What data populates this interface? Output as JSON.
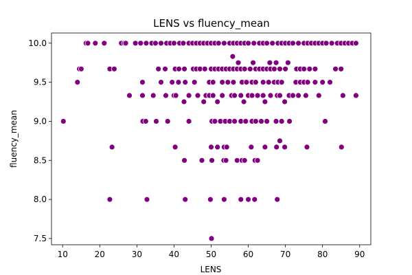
{
  "chart_data": {
    "type": "scatter",
    "title": "LENS vs fluency_mean",
    "xlabel": "LENS",
    "ylabel": "fluency_mean",
    "xlim": [
      7,
      93
    ],
    "ylim": [
      7.42,
      10.13
    ],
    "xticks": [
      10,
      20,
      30,
      40,
      50,
      60,
      70,
      80,
      90
    ],
    "yticks": [
      7.5,
      8.0,
      8.5,
      9.0,
      9.5,
      10.0
    ],
    "ytick_labels": [
      "7.5",
      "8.0",
      "8.5",
      "9.0",
      "9.5",
      "10.0"
    ],
    "grid": false,
    "marker_color": "#800080",
    "points": [
      [
        16.3,
        10.0
      ],
      [
        16.8,
        10.0
      ],
      [
        18.8,
        10.0
      ],
      [
        21.2,
        10.0
      ],
      [
        25.8,
        10.0
      ],
      [
        26.6,
        10.0
      ],
      [
        27.0,
        10.0
      ],
      [
        29.6,
        10.0
      ],
      [
        31.0,
        10.0
      ],
      [
        32.5,
        10.0
      ],
      [
        34.0,
        10.0
      ],
      [
        35.0,
        10.0
      ],
      [
        36.5,
        10.0
      ],
      [
        38.0,
        10.0
      ],
      [
        39.0,
        10.0
      ],
      [
        40.0,
        10.0
      ],
      [
        41.5,
        10.0
      ],
      [
        42.5,
        10.0
      ],
      [
        44.0,
        10.0
      ],
      [
        45.0,
        10.0
      ],
      [
        46.0,
        10.0
      ],
      [
        47.0,
        10.0
      ],
      [
        48.0,
        10.0
      ],
      [
        49.0,
        10.0
      ],
      [
        50.0,
        10.0
      ],
      [
        51.0,
        10.0
      ],
      [
        52.0,
        10.0
      ],
      [
        53.5,
        10.0
      ],
      [
        55.0,
        10.0
      ],
      [
        56.0,
        10.0
      ],
      [
        57.0,
        10.0
      ],
      [
        58.0,
        10.0
      ],
      [
        59.0,
        10.0
      ],
      [
        60.0,
        10.0
      ],
      [
        61.5,
        10.0
      ],
      [
        63.0,
        10.0
      ],
      [
        64.0,
        10.0
      ],
      [
        65.0,
        10.0
      ],
      [
        66.5,
        10.0
      ],
      [
        68.0,
        10.0
      ],
      [
        69.0,
        10.0
      ],
      [
        70.0,
        10.0
      ],
      [
        71.0,
        10.0
      ],
      [
        72.0,
        10.0
      ],
      [
        73.5,
        10.0
      ],
      [
        75.0,
        10.0
      ],
      [
        76.0,
        10.0
      ],
      [
        77.0,
        10.0
      ],
      [
        78.0,
        10.0
      ],
      [
        79.0,
        10.0
      ],
      [
        80.0,
        10.0
      ],
      [
        81.0,
        10.0
      ],
      [
        82.5,
        10.0
      ],
      [
        84.0,
        10.0
      ],
      [
        85.0,
        10.0
      ],
      [
        86.0,
        10.0
      ],
      [
        87.0,
        10.0
      ],
      [
        88.0,
        10.0
      ],
      [
        89.0,
        10.0
      ],
      [
        55.8,
        9.83
      ],
      [
        57.3,
        9.75
      ],
      [
        61.3,
        9.75
      ],
      [
        65.8,
        9.75
      ],
      [
        67.5,
        9.75
      ],
      [
        70.7,
        9.75
      ],
      [
        14.5,
        9.67
      ],
      [
        15.0,
        9.67
      ],
      [
        22.7,
        9.67
      ],
      [
        23.9,
        9.67
      ],
      [
        35.8,
        9.67
      ],
      [
        37.6,
        9.67
      ],
      [
        40.3,
        9.67
      ],
      [
        41.3,
        9.67
      ],
      [
        42.8,
        9.67
      ],
      [
        45.2,
        9.67
      ],
      [
        46.0,
        9.67
      ],
      [
        47.0,
        9.67
      ],
      [
        48.3,
        9.67
      ],
      [
        50.0,
        9.67
      ],
      [
        51.0,
        9.67
      ],
      [
        52.0,
        9.67
      ],
      [
        53.0,
        9.67
      ],
      [
        54.0,
        9.67
      ],
      [
        55.0,
        9.67
      ],
      [
        56.0,
        9.67
      ],
      [
        57.0,
        9.67
      ],
      [
        58.0,
        9.67
      ],
      [
        59.0,
        9.67
      ],
      [
        60.5,
        9.67
      ],
      [
        62.0,
        9.67
      ],
      [
        63.0,
        9.67
      ],
      [
        64.0,
        9.67
      ],
      [
        65.0,
        9.67
      ],
      [
        66.0,
        9.67
      ],
      [
        67.0,
        9.67
      ],
      [
        68.5,
        9.67
      ],
      [
        70.0,
        9.67
      ],
      [
        73.0,
        9.67
      ],
      [
        74.0,
        9.67
      ],
      [
        75.0,
        9.67
      ],
      [
        76.5,
        9.67
      ],
      [
        78.0,
        9.67
      ],
      [
        83.5,
        9.67
      ],
      [
        85.0,
        9.67
      ],
      [
        14.0,
        9.5
      ],
      [
        31.5,
        9.5
      ],
      [
        36.5,
        9.5
      ],
      [
        39.5,
        9.5
      ],
      [
        41.2,
        9.5
      ],
      [
        43.0,
        9.5
      ],
      [
        45.5,
        9.5
      ],
      [
        49.5,
        9.5
      ],
      [
        50.5,
        9.5
      ],
      [
        53.0,
        9.5
      ],
      [
        54.5,
        9.5
      ],
      [
        56.0,
        9.5
      ],
      [
        58.3,
        9.5
      ],
      [
        59.5,
        9.5
      ],
      [
        61.0,
        9.5
      ],
      [
        62.0,
        9.5
      ],
      [
        64.0,
        9.5
      ],
      [
        65.5,
        9.5
      ],
      [
        67.0,
        9.5
      ],
      [
        68.0,
        9.5
      ],
      [
        69.0,
        9.5
      ],
      [
        72.8,
        9.5
      ],
      [
        74.0,
        9.5
      ],
      [
        75.0,
        9.5
      ],
      [
        76.0,
        9.5
      ],
      [
        78.0,
        9.5
      ],
      [
        80.0,
        9.5
      ],
      [
        82.0,
        9.5
      ],
      [
        28.0,
        9.33
      ],
      [
        31.5,
        9.33
      ],
      [
        34.4,
        9.33
      ],
      [
        37.8,
        9.33
      ],
      [
        40.0,
        9.33
      ],
      [
        40.5,
        9.33
      ],
      [
        44.0,
        9.33
      ],
      [
        46.4,
        9.33
      ],
      [
        48.6,
        9.33
      ],
      [
        49.5,
        9.33
      ],
      [
        50.5,
        9.33
      ],
      [
        53.0,
        9.33
      ],
      [
        55.5,
        9.33
      ],
      [
        56.3,
        9.33
      ],
      [
        58.0,
        9.33
      ],
      [
        60.0,
        9.33
      ],
      [
        61.0,
        9.33
      ],
      [
        62.5,
        9.33
      ],
      [
        64.0,
        9.33
      ],
      [
        66.0,
        9.33
      ],
      [
        67.8,
        9.33
      ],
      [
        68.5,
        9.33
      ],
      [
        71.0,
        9.33
      ],
      [
        72.0,
        9.33
      ],
      [
        73.5,
        9.33
      ],
      [
        75.5,
        9.33
      ],
      [
        79.0,
        9.33
      ],
      [
        85.5,
        9.33
      ],
      [
        89.0,
        9.33
      ],
      [
        42.7,
        9.25
      ],
      [
        48.0,
        9.25
      ],
      [
        51.7,
        9.25
      ],
      [
        58.8,
        9.25
      ],
      [
        64.5,
        9.25
      ],
      [
        69.8,
        9.25
      ],
      [
        10.2,
        9.0
      ],
      [
        31.6,
        9.0
      ],
      [
        32.4,
        9.0
      ],
      [
        35.2,
        9.0
      ],
      [
        38.3,
        9.0
      ],
      [
        44.0,
        9.0
      ],
      [
        50.2,
        9.0
      ],
      [
        51.0,
        9.0
      ],
      [
        52.5,
        9.0
      ],
      [
        53.8,
        9.0
      ],
      [
        55.0,
        9.0
      ],
      [
        56.3,
        9.0
      ],
      [
        58.0,
        9.0
      ],
      [
        59.3,
        9.0
      ],
      [
        61.0,
        9.0
      ],
      [
        62.0,
        9.0
      ],
      [
        63.5,
        9.0
      ],
      [
        65.0,
        9.0
      ],
      [
        67.5,
        9.0
      ],
      [
        69.0,
        9.0
      ],
      [
        71.1,
        9.0
      ],
      [
        80.7,
        9.0
      ],
      [
        68.5,
        8.75
      ],
      [
        23.3,
        8.67
      ],
      [
        40.3,
        8.67
      ],
      [
        50.0,
        8.67
      ],
      [
        51.7,
        8.67
      ],
      [
        53.5,
        8.67
      ],
      [
        54.2,
        8.67
      ],
      [
        60.8,
        8.67
      ],
      [
        64.5,
        8.67
      ],
      [
        67.6,
        8.67
      ],
      [
        69.8,
        8.67
      ],
      [
        75.8,
        8.67
      ],
      [
        85.1,
        8.67
      ],
      [
        42.8,
        8.5
      ],
      [
        47.5,
        8.5
      ],
      [
        50.2,
        8.5
      ],
      [
        53.4,
        8.5
      ],
      [
        54.0,
        8.5
      ],
      [
        57.0,
        8.5
      ],
      [
        58.3,
        8.5
      ],
      [
        59.0,
        8.5
      ],
      [
        61.8,
        8.5
      ],
      [
        62.5,
        8.5
      ],
      [
        22.7,
        8.0
      ],
      [
        32.7,
        8.0
      ],
      [
        43.0,
        8.0
      ],
      [
        49.8,
        8.0
      ],
      [
        53.5,
        8.0
      ],
      [
        58.0,
        8.0
      ],
      [
        60.0,
        8.0
      ],
      [
        61.7,
        8.0
      ],
      [
        67.8,
        8.0
      ],
      [
        50.1,
        7.5
      ]
    ]
  }
}
